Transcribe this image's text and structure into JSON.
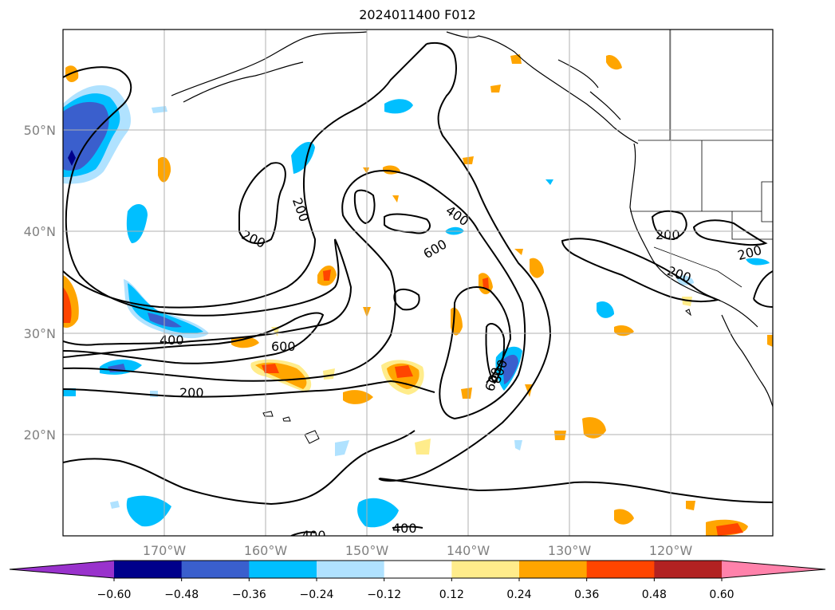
{
  "title": "2024011400 F012",
  "lat_labels": [
    "50°N",
    "40°N",
    "30°N",
    "20°N"
  ],
  "lon_labels": [
    "170°W",
    "160°W",
    "150°W",
    "140°W",
    "130°W",
    "120°W"
  ],
  "colorbar": {
    "ticks": [
      "−0.60",
      "−0.48",
      "−0.36",
      "−0.24",
      "−0.12",
      "0.12",
      "0.24",
      "0.36",
      "0.48",
      "0.60"
    ],
    "colors": [
      "#9932cc",
      "#00008b",
      "#3a5fcd",
      "#00bfff",
      "#b0e2ff",
      "#ffffff",
      "#ffec8b",
      "#ffa500",
      "#ff4500",
      "#b22222",
      "#ff82ab"
    ]
  },
  "contour_labels": [
    "200",
    "200",
    "400",
    "600",
    "400",
    "600",
    "200",
    "800",
    "600",
    "200",
    "200",
    "200",
    "400",
    "400"
  ]
}
